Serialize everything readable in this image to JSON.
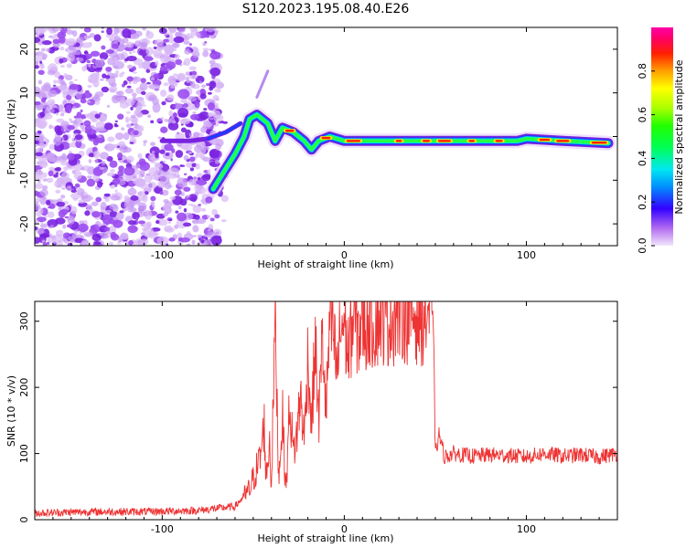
{
  "title": "S120.2023.195.08.40.E26",
  "chart_data": [
    {
      "id": "spectrogram",
      "type": "heatmap",
      "xlabel": "Height of straight line (km)",
      "ylabel": "Frequency (Hz)",
      "xlim": [
        -170,
        150
      ],
      "ylim": [
        -25,
        25
      ],
      "xticks": [
        -100,
        0,
        100
      ],
      "yticks": [
        -20,
        -10,
        0,
        10,
        20
      ],
      "colorbar": {
        "label": "Normalized spectral amplitude",
        "range": [
          0,
          1
        ],
        "ticks": [
          0.0,
          0.2,
          0.4,
          0.6,
          0.8
        ],
        "colormap": "gist_ncar-like (light violet → blue → cyan → green → yellow → red → magenta)"
      },
      "features": {
        "noise_region_x": [
          -170,
          -68
        ],
        "isolated_streak": {
          "x": [
            -48,
            -42
          ],
          "y": [
            9,
            15
          ]
        },
        "main_trace": [
          {
            "x": -72,
            "y": -12
          },
          {
            "x": -66,
            "y": -8
          },
          {
            "x": -60,
            "y": -4
          },
          {
            "x": -55,
            "y": 0
          },
          {
            "x": -52,
            "y": 4
          },
          {
            "x": -48,
            "y": 5
          },
          {
            "x": -42,
            "y": 3
          },
          {
            "x": -38,
            "y": -1
          },
          {
            "x": -34,
            "y": 2
          },
          {
            "x": -28,
            "y": 1
          },
          {
            "x": -22,
            "y": -1
          },
          {
            "x": -18,
            "y": -3
          },
          {
            "x": -14,
            "y": -1
          },
          {
            "x": -8,
            "y": 0
          },
          {
            "x": 0,
            "y": -1
          },
          {
            "x": 20,
            "y": -1
          },
          {
            "x": 60,
            "y": -1
          },
          {
            "x": 95,
            "y": -1
          },
          {
            "x": 100,
            "y": -0.5
          },
          {
            "x": 120,
            "y": -1
          },
          {
            "x": 145,
            "y": -1.5
          }
        ],
        "spur_trace": [
          {
            "x": -100,
            "y": -1
          },
          {
            "x": -85,
            "y": -1
          },
          {
            "x": -75,
            "y": -0.5
          },
          {
            "x": -65,
            "y": 1
          },
          {
            "x": -57,
            "y": 3
          }
        ]
      }
    },
    {
      "id": "snr",
      "type": "line",
      "xlabel": "Height of straight line (km)",
      "ylabel": "SNR (10 * v/v)",
      "xlim": [
        -170,
        150
      ],
      "ylim": [
        0,
        330
      ],
      "xticks": [
        -100,
        0,
        100
      ],
      "yticks": [
        0,
        100,
        200,
        300
      ],
      "color": "#ee3333",
      "series": [
        {
          "x": [
            -170,
            -140,
            -110,
            -80,
            -60,
            -52,
            -46,
            -44,
            -43,
            -42,
            -41,
            -40,
            -38,
            -36,
            -34,
            -32,
            -30,
            -28,
            -26,
            -24,
            -22,
            -20,
            -18,
            -16,
            -14,
            -12,
            -10,
            -8,
            -6,
            -4,
            -2,
            0,
            2,
            4,
            6,
            8,
            10,
            12,
            14,
            16,
            18,
            20,
            24,
            28,
            32,
            36,
            40,
            44,
            46,
            48,
            49,
            50,
            52,
            55,
            60,
            70,
            80,
            90,
            100,
            110,
            120,
            130,
            140,
            150
          ],
          "y": [
            10,
            12,
            12,
            14,
            20,
            45,
            95,
            145,
            60,
            90,
            120,
            50,
            310,
            60,
            160,
            40,
            180,
            100,
            130,
            190,
            120,
            250,
            140,
            270,
            150,
            280,
            160,
            295,
            280,
            220,
            290,
            300,
            250,
            290,
            300,
            280,
            305,
            290,
            310,
            295,
            305,
            310,
            305,
            310,
            315,
            310,
            312,
            308,
            315,
            310,
            300,
            95,
            130,
            95,
            100,
            96,
            98,
            97,
            95,
            100,
            96,
            98,
            95,
            100
          ]
        }
      ]
    }
  ]
}
